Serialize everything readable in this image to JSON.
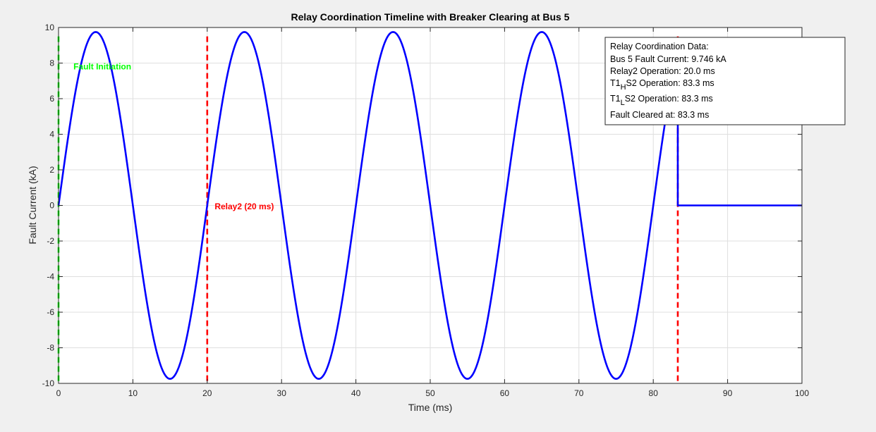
{
  "chart_data": {
    "type": "line",
    "title": "Relay Coordination Timeline with Breaker Clearing at Bus 5",
    "xlabel": "Time (ms)",
    "ylabel": "Fault Current (kA)",
    "xlim": [
      0,
      100
    ],
    "ylim": [
      -10,
      10
    ],
    "xticks": [
      0,
      10,
      20,
      30,
      40,
      50,
      60,
      70,
      80,
      90,
      100
    ],
    "yticks": [
      -10,
      -8,
      -6,
      -4,
      -2,
      0,
      2,
      4,
      6,
      8,
      10
    ],
    "grid": true,
    "series": [
      {
        "name": "",
        "color": "#0000ff",
        "waveform": "sine",
        "amplitude_kA": 9.746,
        "frequency_hz": 50,
        "x_start": 0,
        "clear_time_ms": 83.3,
        "x_end": 100,
        "value_after_clear": 0
      }
    ],
    "vlines": [
      {
        "x": 0,
        "color": "#00ff00",
        "style": "dashed"
      },
      {
        "x": 20,
        "color": "#ff0000",
        "style": "dashed"
      },
      {
        "x": 83.3,
        "color": "#ff0000",
        "style": "dashed"
      }
    ],
    "annotations": [
      {
        "text": "Fault Initiation",
        "x": 2,
        "y": 7.8,
        "color": "#00ff00"
      },
      {
        "text": "Relay2 (20 ms)",
        "x": 21,
        "y": -0.05,
        "color": "#ff0000"
      }
    ],
    "info_box": {
      "title": "Relay Coordination Data:",
      "fault_current": "Bus 5 Fault Current: 9.746 kA",
      "relay2": "Relay2 Operation: 20.0 ms",
      "t1hs2": {
        "pre": "T1",
        "sub": "H",
        "post": "S2 Operation: 83.3 ms"
      },
      "t1ls2": {
        "pre": "T1",
        "sub": "L",
        "post": "S2 Operation: 83.3 ms"
      },
      "cleared": "Fault Cleared at: 83.3 ms"
    }
  }
}
